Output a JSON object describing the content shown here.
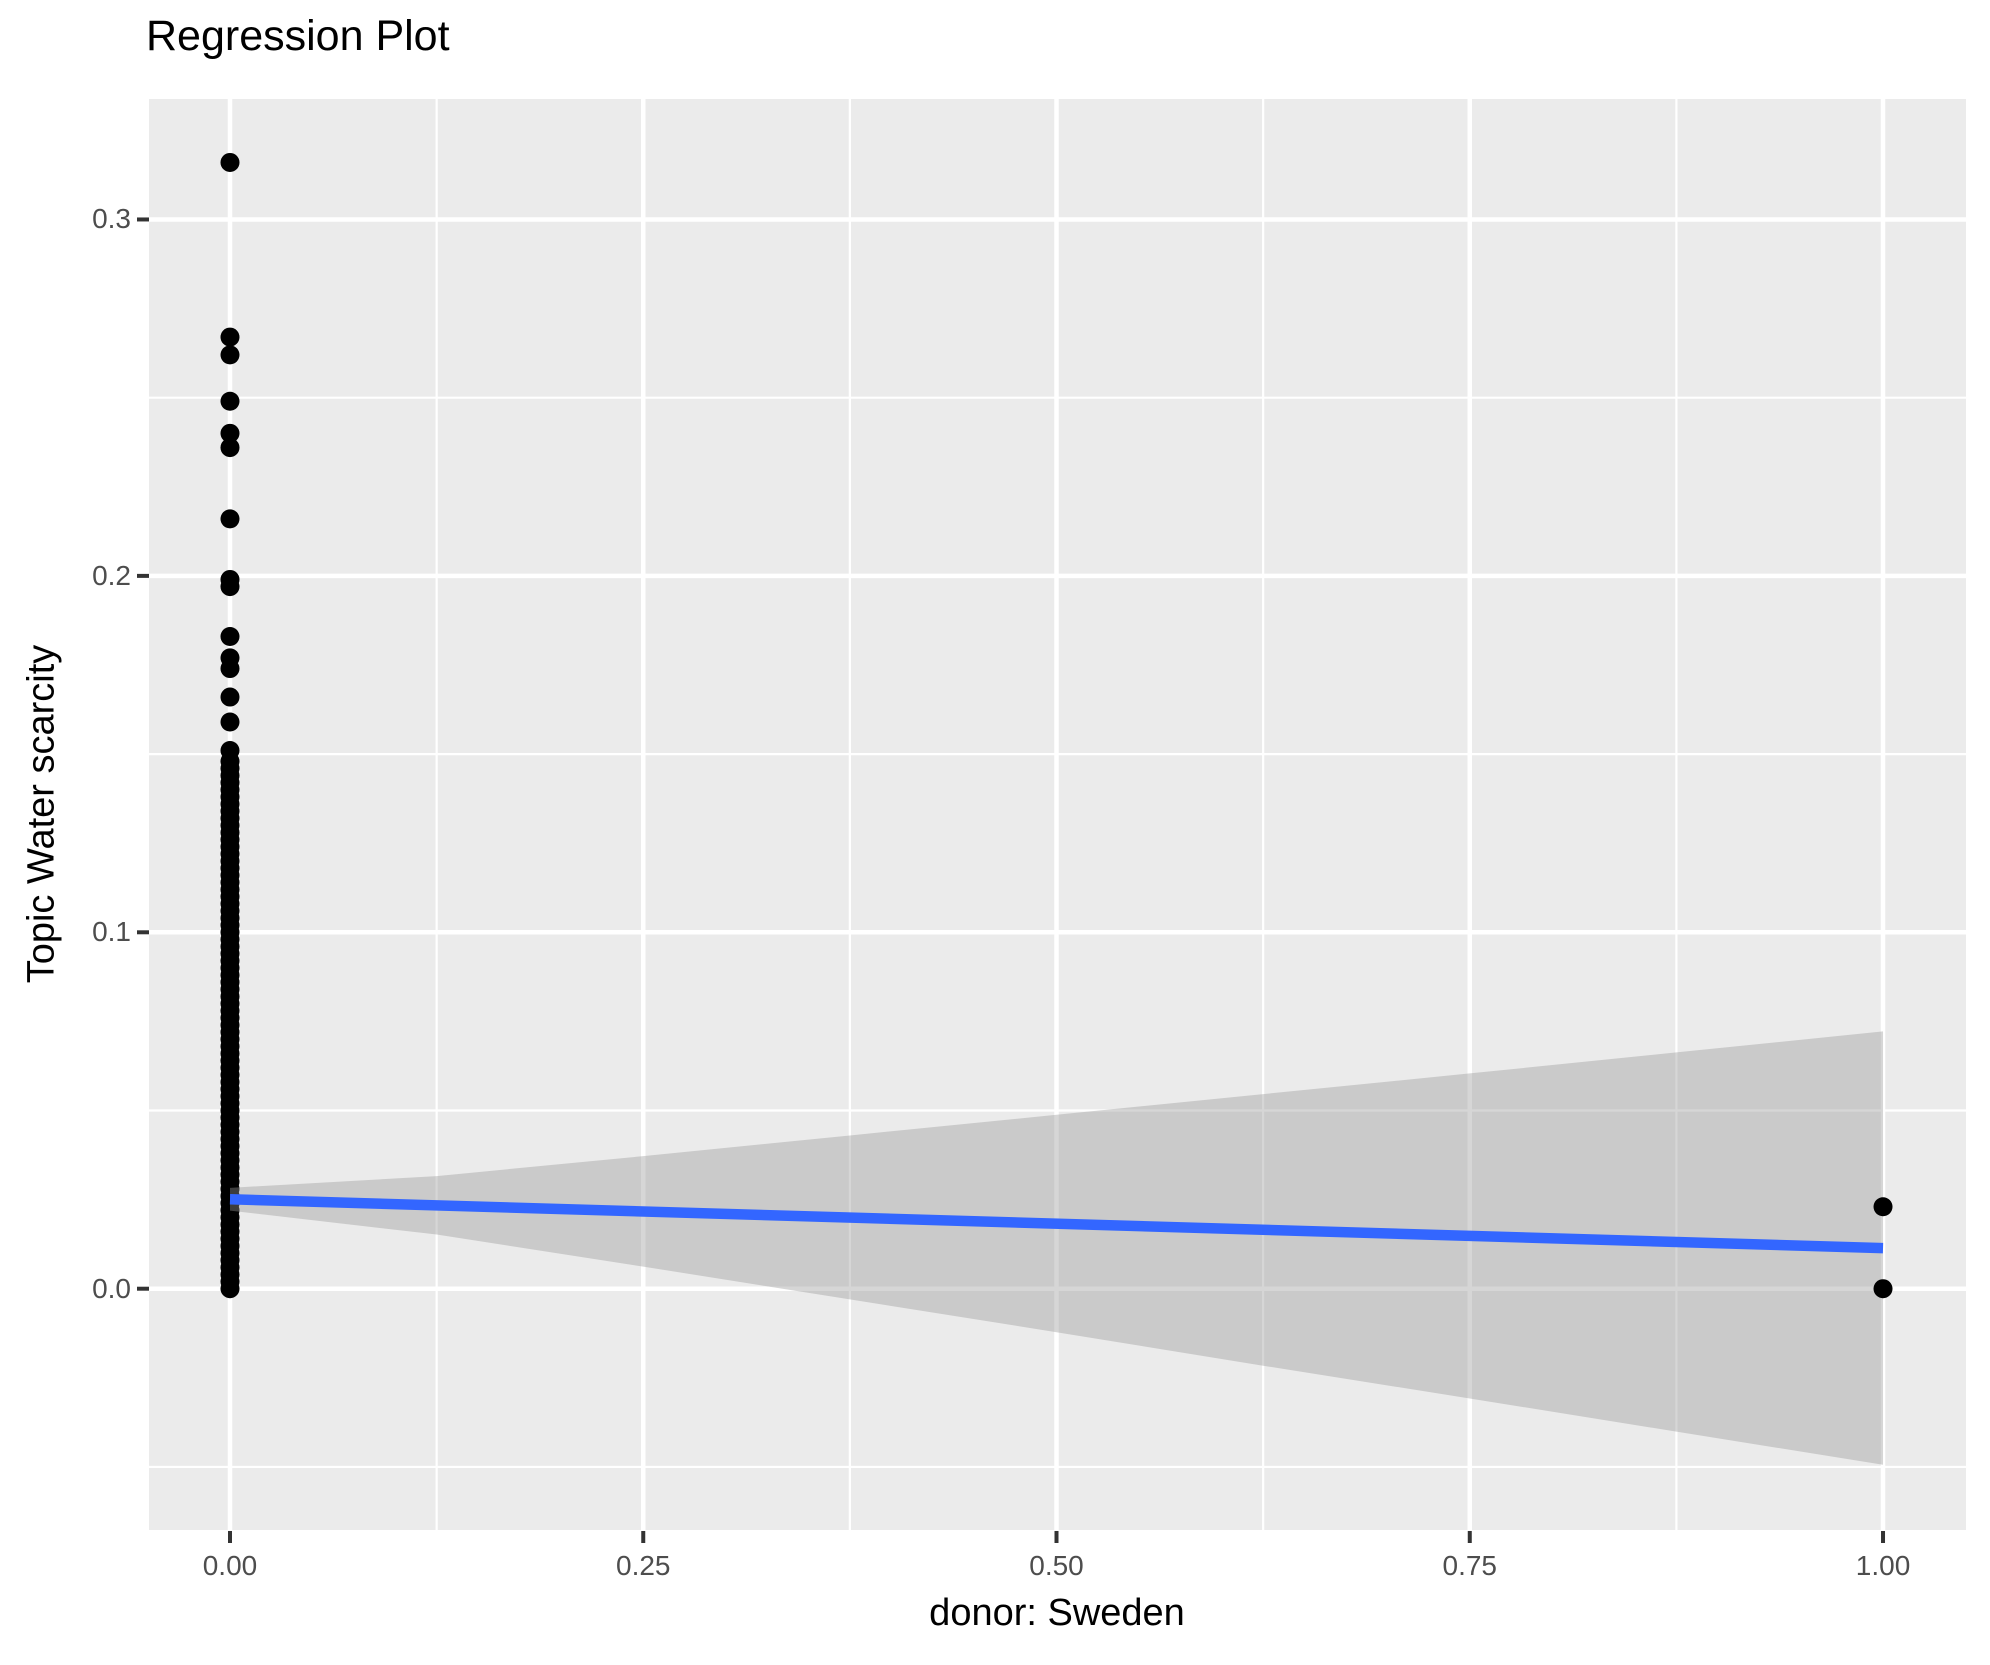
{
  "title": "Regression Plot",
  "x_axis": {
    "title": "donor: Sweden"
  },
  "y_axis": {
    "title": "Topic Water scarcity"
  },
  "chart_data": {
    "type": "scatter",
    "title": "Regression Plot",
    "xlabel": "donor: Sweden",
    "ylabel": "Topic Water scarcity",
    "grid": true,
    "legend_position": "none",
    "x_domain": [
      -0.049,
      1.0502
    ],
    "y_domain": [
      -0.0677,
      0.3338
    ],
    "x_ticks": {
      "values": [
        0,
        0.25,
        0.5,
        0.75,
        1.0
      ],
      "labels": [
        "0.00",
        "0.25",
        "0.50",
        "0.75",
        "1.00"
      ]
    },
    "x_minor_ticks": [
      0.125,
      0.375,
      0.625,
      0.875
    ],
    "y_ticks": {
      "values": [
        0.0,
        0.1,
        0.2,
        0.3
      ],
      "labels": [
        "0.0",
        "0.1",
        "0.2",
        "0.3"
      ]
    },
    "y_minor_ticks": [
      -0.05,
      0.05,
      0.15,
      0.25
    ],
    "points_at_x0": [
      0.316,
      0.267,
      0.262,
      0.249,
      0.24,
      0.236,
      0.216,
      0.199,
      0.197,
      0.183,
      0.177,
      0.174,
      0.166,
      0.159,
      0.151,
      0.148,
      0.146,
      0.144,
      0.142,
      0.14,
      0.138,
      0.136,
      0.134,
      0.132,
      0.13,
      0.128,
      0.126,
      0.124,
      0.122,
      0.12,
      0.118,
      0.116,
      0.114,
      0.112,
      0.11,
      0.108,
      0.106,
      0.104,
      0.102,
      0.1,
      0.098,
      0.096,
      0.094,
      0.092,
      0.09,
      0.088,
      0.086,
      0.084,
      0.082,
      0.08,
      0.078,
      0.076,
      0.074,
      0.072,
      0.07,
      0.068,
      0.066,
      0.064,
      0.062,
      0.06,
      0.058,
      0.056,
      0.054,
      0.052,
      0.05,
      0.048,
      0.046,
      0.044,
      0.042,
      0.04,
      0.038,
      0.036,
      0.034,
      0.032,
      0.03,
      0.028,
      0.026,
      0.024,
      0.022,
      0.02,
      0.018,
      0.016,
      0.014,
      0.012,
      0.01,
      0.008,
      0.006,
      0.004,
      0.002,
      0.0
    ],
    "points_at_x1": [
      0.023,
      0.0
    ],
    "regression_line": {
      "x": [
        0,
        1
      ],
      "y": [
        0.0251,
        0.0114
      ]
    },
    "confidence_band": {
      "x": [
        0,
        0.125,
        0.25,
        0.375,
        0.5,
        0.625,
        0.75,
        0.875,
        1.0
      ],
      "upper": [
        0.0283,
        0.0316,
        0.0372,
        0.043,
        0.0488,
        0.0546,
        0.0604,
        0.0663,
        0.0722
      ],
      "lower": [
        0.0219,
        0.0152,
        0.0062,
        -0.003,
        -0.0122,
        -0.0216,
        -0.0308,
        -0.0401,
        -0.0494
      ]
    },
    "colors": {
      "panel_bg": "#EBEBEB",
      "grid": "#FFFFFF",
      "ribbon_fill": "#999999",
      "ribbon_opacity": 0.4,
      "line": "#3366FF",
      "point": "#000000",
      "tick_mark": "#333333",
      "tick_label": "#4D4D4D",
      "title_text": "#000000"
    }
  }
}
